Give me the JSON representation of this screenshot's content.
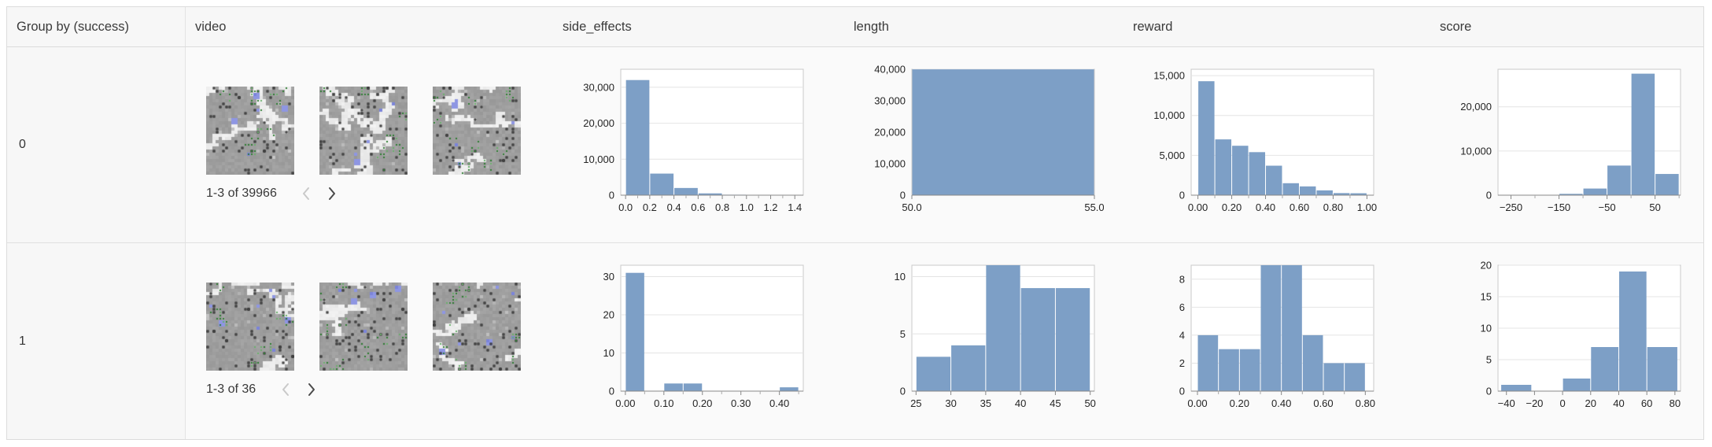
{
  "colors": {
    "bar": "#7d9fc6",
    "grid": "#e4e4e4",
    "plot_border": "#c9c9c9",
    "axis": "#888888",
    "plot_bg": "#ffffff"
  },
  "table": {
    "columns": [
      {
        "key": "group",
        "label": "Group by (success)"
      },
      {
        "key": "video",
        "label": "video"
      },
      {
        "key": "side_effects",
        "label": "side_effects"
      },
      {
        "key": "length",
        "label": "length"
      },
      {
        "key": "reward",
        "label": "reward"
      },
      {
        "key": "score",
        "label": "score"
      }
    ],
    "rows": [
      {
        "group": "0",
        "video": {
          "pagination": "1-3 of 39966",
          "frames": 3,
          "prev_enabled": false,
          "next_enabled": true
        }
      },
      {
        "group": "1",
        "video": {
          "pagination": "1-3 of 36",
          "frames": 3,
          "prev_enabled": false,
          "next_enabled": true
        }
      }
    ]
  },
  "chart_data": [
    {
      "row": 0,
      "column": "side_effects",
      "type": "bar",
      "ylim": [
        0,
        35000
      ],
      "yticks": [
        {
          "v": 0,
          "label": "0"
        },
        {
          "v": 10000,
          "label": "10,000"
        },
        {
          "v": 20000,
          "label": "20,000"
        },
        {
          "v": 30000,
          "label": "30,000"
        }
      ],
      "xlim": [
        -0.04,
        1.47
      ],
      "xticks": [
        {
          "v": 0.0,
          "label": "0.0"
        },
        {
          "v": 0.2,
          "label": "0.2"
        },
        {
          "v": 0.4,
          "label": "0.4"
        },
        {
          "v": 0.6,
          "label": "0.6"
        },
        {
          "v": 0.8,
          "label": "0.8"
        },
        {
          "v": 1.0,
          "label": "1.0"
        },
        {
          "v": 1.2,
          "label": "1.2"
        },
        {
          "v": 1.4,
          "label": "1.4"
        }
      ],
      "minor_xticks": [
        0.1,
        0.3,
        0.5,
        0.7,
        0.9,
        1.1,
        1.3
      ],
      "bins": [
        {
          "x0": 0.0,
          "x1": 0.2,
          "v": 32000
        },
        {
          "x0": 0.2,
          "x1": 0.4,
          "v": 6000
        },
        {
          "x0": 0.4,
          "x1": 0.6,
          "v": 2000
        },
        {
          "x0": 0.6,
          "x1": 0.8,
          "v": 500
        },
        {
          "x0": 0.8,
          "x1": 1.0,
          "v": 130
        },
        {
          "x0": 1.0,
          "x1": 1.2,
          "v": 60
        },
        {
          "x0": 1.2,
          "x1": 1.45,
          "v": 40
        }
      ]
    },
    {
      "row": 0,
      "column": "length",
      "type": "bar",
      "ylim": [
        0,
        40000
      ],
      "yticks": [
        {
          "v": 0,
          "label": "0"
        },
        {
          "v": 10000,
          "label": "10,000"
        },
        {
          "v": 20000,
          "label": "20,000"
        },
        {
          "v": 30000,
          "label": "30,000"
        },
        {
          "v": 40000,
          "label": "40,000"
        }
      ],
      "xlim": [
        50,
        55
      ],
      "xticks": [
        {
          "v": 50,
          "label": "50.0"
        },
        {
          "v": 55,
          "label": "55.0"
        }
      ],
      "minor_xticks": [],
      "bins": [
        {
          "x0": 50,
          "x1": 55,
          "v": 39966
        }
      ]
    },
    {
      "row": 0,
      "column": "reward",
      "type": "bar",
      "ylim": [
        0,
        15800
      ],
      "yticks": [
        {
          "v": 0,
          "label": "0"
        },
        {
          "v": 5000,
          "label": "5,000"
        },
        {
          "v": 10000,
          "label": "10,000"
        },
        {
          "v": 15000,
          "label": "15,000"
        }
      ],
      "xlim": [
        -0.04,
        1.04
      ],
      "xticks": [
        {
          "v": 0.0,
          "label": "0.00"
        },
        {
          "v": 0.2,
          "label": "0.20"
        },
        {
          "v": 0.4,
          "label": "0.40"
        },
        {
          "v": 0.6,
          "label": "0.60"
        },
        {
          "v": 0.8,
          "label": "0.80"
        },
        {
          "v": 1.0,
          "label": "1.00"
        }
      ],
      "minor_xticks": [
        0.1,
        0.3,
        0.5,
        0.7,
        0.9
      ],
      "bins": [
        {
          "x0": 0.0,
          "x1": 0.1,
          "v": 14300
        },
        {
          "x0": 0.1,
          "x1": 0.2,
          "v": 7000
        },
        {
          "x0": 0.2,
          "x1": 0.3,
          "v": 6200
        },
        {
          "x0": 0.3,
          "x1": 0.4,
          "v": 5400
        },
        {
          "x0": 0.4,
          "x1": 0.5,
          "v": 3700
        },
        {
          "x0": 0.5,
          "x1": 0.6,
          "v": 1500
        },
        {
          "x0": 0.6,
          "x1": 0.7,
          "v": 1100
        },
        {
          "x0": 0.7,
          "x1": 0.8,
          "v": 600
        },
        {
          "x0": 0.8,
          "x1": 0.9,
          "v": 260
        },
        {
          "x0": 0.9,
          "x1": 1.0,
          "v": 240
        }
      ]
    },
    {
      "row": 0,
      "column": "score",
      "type": "bar",
      "ylim": [
        0,
        28500
      ],
      "yticks": [
        {
          "v": 0,
          "label": "0"
        },
        {
          "v": 10000,
          "label": "10,000"
        },
        {
          "v": 20000,
          "label": "20,000"
        }
      ],
      "xlim": [
        -277,
        103
      ],
      "xticks": [
        {
          "v": -250,
          "label": "−250"
        },
        {
          "v": -150,
          "label": "−150"
        },
        {
          "v": -50,
          "label": "−50"
        },
        {
          "v": 50,
          "label": "50"
        }
      ],
      "minor_xticks": [
        -200,
        -100,
        0,
        100
      ],
      "bins": [
        {
          "x0": -150,
          "x1": -100,
          "v": 300
        },
        {
          "x0": -100,
          "x1": -50,
          "v": 1500
        },
        {
          "x0": -50,
          "x1": 0,
          "v": 6700
        },
        {
          "x0": 0,
          "x1": 50,
          "v": 27500
        },
        {
          "x0": 50,
          "x1": 100,
          "v": 4800
        }
      ]
    },
    {
      "row": 1,
      "column": "side_effects",
      "type": "bar",
      "ylim": [
        0,
        33
      ],
      "yticks": [
        {
          "v": 0,
          "label": "0"
        },
        {
          "v": 10,
          "label": "10"
        },
        {
          "v": 20,
          "label": "20"
        },
        {
          "v": 30,
          "label": "30"
        }
      ],
      "xlim": [
        -0.012,
        0.462
      ],
      "xticks": [
        {
          "v": 0.0,
          "label": "0.00"
        },
        {
          "v": 0.1,
          "label": "0.10"
        },
        {
          "v": 0.2,
          "label": "0.20"
        },
        {
          "v": 0.3,
          "label": "0.30"
        },
        {
          "v": 0.4,
          "label": "0.40"
        }
      ],
      "minor_xticks": [
        0.05,
        0.15,
        0.25,
        0.35,
        0.45
      ],
      "bins": [
        {
          "x0": 0.0,
          "x1": 0.05,
          "v": 31
        },
        {
          "x0": 0.1,
          "x1": 0.15,
          "v": 2
        },
        {
          "x0": 0.15,
          "x1": 0.2,
          "v": 2
        },
        {
          "x0": 0.4,
          "x1": 0.45,
          "v": 1
        }
      ]
    },
    {
      "row": 1,
      "column": "length",
      "type": "bar",
      "ylim": [
        0,
        11
      ],
      "yticks": [
        {
          "v": 0,
          "label": "0"
        },
        {
          "v": 5,
          "label": "5"
        },
        {
          "v": 10,
          "label": "10"
        }
      ],
      "xlim": [
        24.4,
        50.6
      ],
      "xticks": [
        {
          "v": 25,
          "label": "25"
        },
        {
          "v": 30,
          "label": "30"
        },
        {
          "v": 35,
          "label": "35"
        },
        {
          "v": 40,
          "label": "40"
        },
        {
          "v": 45,
          "label": "45"
        },
        {
          "v": 50,
          "label": "50"
        }
      ],
      "minor_xticks": [],
      "bins": [
        {
          "x0": 25,
          "x1": 30,
          "v": 3
        },
        {
          "x0": 30,
          "x1": 35,
          "v": 4
        },
        {
          "x0": 35,
          "x1": 40,
          "v": 11
        },
        {
          "x0": 40,
          "x1": 45,
          "v": 9
        },
        {
          "x0": 45,
          "x1": 50,
          "v": 9
        }
      ]
    },
    {
      "row": 1,
      "column": "reward",
      "type": "bar",
      "ylim": [
        0,
        9
      ],
      "yticks": [
        {
          "v": 0,
          "label": "0"
        },
        {
          "v": 2,
          "label": "2"
        },
        {
          "v": 4,
          "label": "4"
        },
        {
          "v": 6,
          "label": "6"
        },
        {
          "v": 8,
          "label": "8"
        }
      ],
      "xlim": [
        -0.03,
        0.84
      ],
      "xticks": [
        {
          "v": 0.0,
          "label": "0.00"
        },
        {
          "v": 0.2,
          "label": "0.20"
        },
        {
          "v": 0.4,
          "label": "0.40"
        },
        {
          "v": 0.6,
          "label": "0.60"
        },
        {
          "v": 0.8,
          "label": "0.80"
        }
      ],
      "minor_xticks": [
        0.1,
        0.3,
        0.5,
        0.7
      ],
      "bins": [
        {
          "x0": 0.0,
          "x1": 0.1,
          "v": 4
        },
        {
          "x0": 0.1,
          "x1": 0.2,
          "v": 3
        },
        {
          "x0": 0.2,
          "x1": 0.3,
          "v": 3
        },
        {
          "x0": 0.3,
          "x1": 0.4,
          "v": 9
        },
        {
          "x0": 0.4,
          "x1": 0.5,
          "v": 9
        },
        {
          "x0": 0.5,
          "x1": 0.6,
          "v": 4
        },
        {
          "x0": 0.6,
          "x1": 0.7,
          "v": 2
        },
        {
          "x0": 0.7,
          "x1": 0.8,
          "v": 2
        }
      ]
    },
    {
      "row": 1,
      "column": "score",
      "type": "bar",
      "ylim": [
        0,
        20
      ],
      "yticks": [
        {
          "v": 0,
          "label": "0"
        },
        {
          "v": 5,
          "label": "5"
        },
        {
          "v": 10,
          "label": "10"
        },
        {
          "v": 15,
          "label": "15"
        },
        {
          "v": 20,
          "label": "20"
        }
      ],
      "xlim": [
        -46,
        84
      ],
      "xticks": [
        {
          "v": -40,
          "label": "−40"
        },
        {
          "v": -20,
          "label": "−20"
        },
        {
          "v": 0,
          "label": "0"
        },
        {
          "v": 20,
          "label": "20"
        },
        {
          "v": 40,
          "label": "40"
        },
        {
          "v": 60,
          "label": "60"
        },
        {
          "v": 80,
          "label": "80"
        }
      ],
      "minor_xticks": [],
      "bins": [
        {
          "x0": -44,
          "x1": -22,
          "v": 1
        },
        {
          "x0": 0,
          "x1": 20,
          "v": 2
        },
        {
          "x0": 20,
          "x1": 40,
          "v": 7
        },
        {
          "x0": 40,
          "x1": 60,
          "v": 19
        },
        {
          "x0": 60,
          "x1": 82,
          "v": 7
        }
      ]
    }
  ]
}
